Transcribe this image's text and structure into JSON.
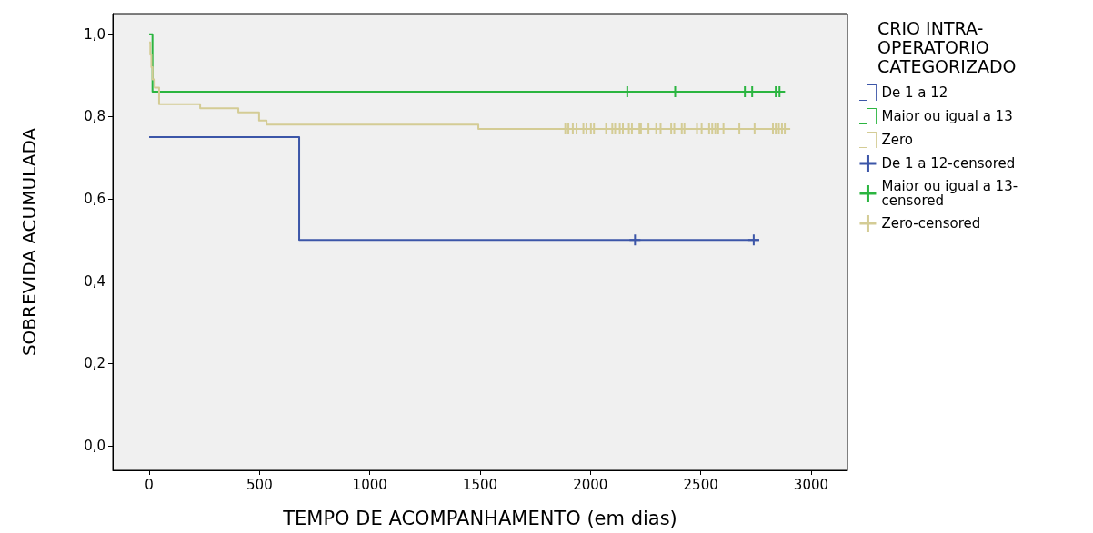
{
  "chart_data": {
    "type": "step",
    "xlabel": "TEMPO DE ACOMPANHAMENTO (em dias)",
    "ylabel": "SOBREVIDA ACUMULADA",
    "legend_title": "CRIO INTRA-OPERATORIO CATEGORIZADO",
    "legend": "right",
    "grid": false,
    "xlim": [
      -165,
      3165
    ],
    "xticks": [
      0,
      500,
      1000,
      1500,
      2000,
      2500,
      3000
    ],
    "ylim": [
      -0.06,
      1.05
    ],
    "yticks": [
      {
        "value": 0,
        "label": "0,0"
      },
      {
        "value": 0.2,
        "label": "0,2"
      },
      {
        "value": 0.4,
        "label": "0,4"
      },
      {
        "value": 0.6,
        "label": "0,6"
      },
      {
        "value": 0.8,
        "label": "0,8"
      },
      {
        "value": 1,
        "label": "1,0"
      }
    ],
    "series": [
      {
        "name": "De 1 a 12",
        "color": "#3c56a8",
        "x": [
          0,
          680,
          2765
        ],
        "values": [
          0.75,
          0.5,
          0.5
        ]
      },
      {
        "name": "Maior ou igual a 13",
        "color": "#2bb540",
        "x": [
          0,
          15,
          2881
        ],
        "values": [
          1,
          0.86,
          0.86
        ]
      },
      {
        "name": "Zero",
        "color": "#d4cc95",
        "x": [
          0,
          5,
          10,
          15,
          25,
          45,
          231,
          404,
          498,
          532,
          1492,
          2890
        ],
        "values": [
          0.98,
          0.95,
          0.92,
          0.89,
          0.87,
          0.83,
          0.82,
          0.81,
          0.79,
          0.78,
          0.77,
          0.77
        ]
      },
      {
        "name": "De 1 a 12-censored",
        "type": "scatter",
        "marker": "cross",
        "color": "#3c56a8",
        "x": [
          2202,
          2740
        ],
        "values": [
          0.5,
          0.5
        ]
      },
      {
        "name": "Maior ou igual a 13-censored",
        "type": "scatter",
        "marker": "cross",
        "color": "#2bb540",
        "x": [
          2167,
          2384,
          2700,
          2733,
          2840,
          2857
        ],
        "values": [
          0.86,
          0.86,
          0.86,
          0.86,
          0.86,
          0.86
        ]
      },
      {
        "name": "Zero-censored",
        "type": "scatter",
        "marker": "cross",
        "color": "#d4cc95",
        "x": [
          1886,
          1900,
          1920,
          1937,
          1968,
          1982,
          2002,
          2016,
          2071,
          2099,
          2112,
          2133,
          2147,
          2174,
          2188,
          2222,
          2229,
          2263,
          2298,
          2318,
          2366,
          2380,
          2414,
          2426,
          2483,
          2504,
          2538,
          2552,
          2566,
          2579,
          2603,
          2675,
          2744,
          2827,
          2840,
          2854,
          2868,
          2881
        ],
        "values": [
          0.77,
          0.77,
          0.77,
          0.77,
          0.77,
          0.77,
          0.77,
          0.77,
          0.77,
          0.77,
          0.77,
          0.77,
          0.77,
          0.77,
          0.77,
          0.77,
          0.77,
          0.77,
          0.77,
          0.77,
          0.77,
          0.77,
          0.77,
          0.77,
          0.77,
          0.77,
          0.77,
          0.77,
          0.77,
          0.77,
          0.77,
          0.77,
          0.77,
          0.77,
          0.77,
          0.77,
          0.77,
          0.77
        ]
      }
    ]
  }
}
